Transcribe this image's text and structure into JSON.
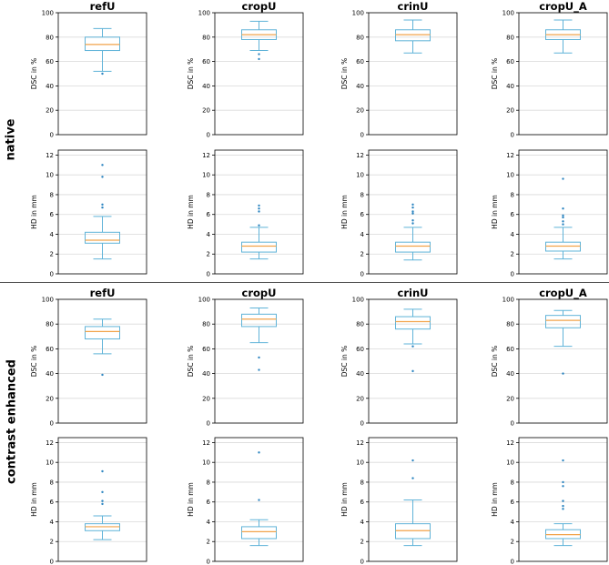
{
  "styles": {
    "box_color": "#5fb3d8",
    "median_color": "#f2a34a",
    "outlier_color": "#2e86c1",
    "grid_color": "#d9d9d9"
  },
  "groups": [
    {
      "label": "native"
    },
    {
      "label": "contrast enhanced"
    }
  ],
  "chart_data": [
    {
      "type": "box",
      "group": "native",
      "title": "refU",
      "ylabel": "DSC in %",
      "ylim": [
        0,
        100
      ],
      "yticks": [
        0,
        20,
        40,
        60,
        80,
        100
      ],
      "grid": true,
      "box": {
        "whisker_low": 52,
        "q1": 69,
        "median": 74,
        "q3": 80,
        "whisker_high": 87,
        "outliers": [
          50
        ]
      }
    },
    {
      "type": "box",
      "group": "native",
      "title": "cropU",
      "ylabel": "DSC in %",
      "ylim": [
        0,
        100
      ],
      "yticks": [
        0,
        20,
        40,
        60,
        80,
        100
      ],
      "grid": true,
      "box": {
        "whisker_low": 69,
        "q1": 78,
        "median": 82,
        "q3": 86,
        "whisker_high": 93,
        "outliers": [
          66,
          62
        ]
      }
    },
    {
      "type": "box",
      "group": "native",
      "title": "crinU",
      "ylabel": "DSC in %",
      "ylim": [
        0,
        100
      ],
      "yticks": [
        0,
        20,
        40,
        60,
        80,
        100
      ],
      "grid": true,
      "box": {
        "whisker_low": 67,
        "q1": 77,
        "median": 82,
        "q3": 86,
        "whisker_high": 94,
        "outliers": []
      }
    },
    {
      "type": "box",
      "group": "native",
      "title": "cropU_A",
      "ylabel": "DSC in %",
      "ylim": [
        0,
        100
      ],
      "yticks": [
        0,
        20,
        40,
        60,
        80,
        100
      ],
      "grid": true,
      "box": {
        "whisker_low": 67,
        "q1": 78,
        "median": 82,
        "q3": 86,
        "whisker_high": 94,
        "outliers": []
      }
    },
    {
      "type": "box",
      "group": "native",
      "title": "",
      "ylabel": "HD in mm",
      "ylim": [
        0,
        12.5
      ],
      "yticks": [
        0,
        2,
        4,
        6,
        8,
        10,
        12
      ],
      "grid": true,
      "box": {
        "whisker_low": 1.5,
        "q1": 3.1,
        "median": 3.4,
        "q3": 4.2,
        "whisker_high": 5.8,
        "outliers": [
          6.7,
          7.0,
          9.8,
          11.0
        ]
      }
    },
    {
      "type": "box",
      "group": "native",
      "title": "",
      "ylabel": "HD in mm",
      "ylim": [
        0,
        12.5
      ],
      "yticks": [
        0,
        2,
        4,
        6,
        8,
        10,
        12
      ],
      "grid": true,
      "box": {
        "whisker_low": 1.5,
        "q1": 2.2,
        "median": 2.8,
        "q3": 3.2,
        "whisker_high": 4.7,
        "outliers": [
          4.9,
          6.3,
          6.6,
          6.9
        ]
      }
    },
    {
      "type": "box",
      "group": "native",
      "title": "",
      "ylabel": "HD in mm",
      "ylim": [
        0,
        12.5
      ],
      "yticks": [
        0,
        2,
        4,
        6,
        8,
        10,
        12
      ],
      "grid": true,
      "box": {
        "whisker_low": 1.4,
        "q1": 2.2,
        "median": 2.8,
        "q3": 3.2,
        "whisker_high": 4.7,
        "outliers": [
          5.1,
          5.4,
          6.1,
          6.3,
          6.7,
          7.0
        ]
      }
    },
    {
      "type": "box",
      "group": "native",
      "title": "",
      "ylabel": "HD in mm",
      "ylim": [
        0,
        12.5
      ],
      "yticks": [
        0,
        2,
        4,
        6,
        8,
        10,
        12
      ],
      "grid": true,
      "box": {
        "whisker_low": 1.5,
        "q1": 2.3,
        "median": 2.8,
        "q3": 3.2,
        "whisker_high": 4.7,
        "outliers": [
          5.0,
          5.3,
          5.7,
          5.9,
          6.6,
          9.6
        ]
      }
    },
    {
      "type": "box",
      "group": "contrast enhanced",
      "title": "refU",
      "ylabel": "DSC in %",
      "ylim": [
        0,
        100
      ],
      "yticks": [
        0,
        20,
        40,
        60,
        80,
        100
      ],
      "grid": true,
      "box": {
        "whisker_low": 56,
        "q1": 68,
        "median": 74,
        "q3": 78,
        "whisker_high": 84,
        "outliers": [
          39
        ]
      }
    },
    {
      "type": "box",
      "group": "contrast enhanced",
      "title": "cropU",
      "ylabel": "DSC in %",
      "ylim": [
        0,
        100
      ],
      "yticks": [
        0,
        20,
        40,
        60,
        80,
        100
      ],
      "grid": true,
      "box": {
        "whisker_low": 65,
        "q1": 78,
        "median": 84,
        "q3": 88,
        "whisker_high": 93,
        "outliers": [
          53,
          43
        ]
      }
    },
    {
      "type": "box",
      "group": "contrast enhanced",
      "title": "crinU",
      "ylabel": "DSC in %",
      "ylim": [
        0,
        100
      ],
      "yticks": [
        0,
        20,
        40,
        60,
        80,
        100
      ],
      "grid": true,
      "box": {
        "whisker_low": 64,
        "q1": 76,
        "median": 82,
        "q3": 86,
        "whisker_high": 92,
        "outliers": [
          62,
          42
        ]
      }
    },
    {
      "type": "box",
      "group": "contrast enhanced",
      "title": "cropU_A",
      "ylabel": "DSC in %",
      "ylim": [
        0,
        100
      ],
      "yticks": [
        0,
        20,
        40,
        60,
        80,
        100
      ],
      "grid": true,
      "box": {
        "whisker_low": 62,
        "q1": 77,
        "median": 83,
        "q3": 87,
        "whisker_high": 91,
        "outliers": [
          40
        ]
      }
    },
    {
      "type": "box",
      "group": "contrast enhanced",
      "title": "",
      "ylabel": "HD in mm",
      "ylim": [
        0,
        12.5
      ],
      "yticks": [
        0,
        2,
        4,
        6,
        8,
        10,
        12
      ],
      "grid": true,
      "box": {
        "whisker_low": 2.2,
        "q1": 3.1,
        "median": 3.5,
        "q3": 3.8,
        "whisker_high": 4.6,
        "outliers": [
          5.8,
          6.1,
          7.0,
          9.1
        ]
      }
    },
    {
      "type": "box",
      "group": "contrast enhanced",
      "title": "",
      "ylabel": "HD in mm",
      "ylim": [
        0,
        12.5
      ],
      "yticks": [
        0,
        2,
        4,
        6,
        8,
        10,
        12
      ],
      "grid": true,
      "box": {
        "whisker_low": 1.6,
        "q1": 2.3,
        "median": 3.0,
        "q3": 3.5,
        "whisker_high": 4.2,
        "outliers": [
          6.2,
          11.0
        ]
      }
    },
    {
      "type": "box",
      "group": "contrast enhanced",
      "title": "",
      "ylabel": "HD in mm",
      "ylim": [
        0,
        12.5
      ],
      "yticks": [
        0,
        2,
        4,
        6,
        8,
        10,
        12
      ],
      "grid": true,
      "box": {
        "whisker_low": 1.6,
        "q1": 2.3,
        "median": 3.1,
        "q3": 3.8,
        "whisker_high": 6.2,
        "outliers": [
          8.4,
          10.2
        ]
      }
    },
    {
      "type": "box",
      "group": "contrast enhanced",
      "title": "",
      "ylabel": "HD in mm",
      "ylim": [
        0,
        12.5
      ],
      "yticks": [
        0,
        2,
        4,
        6,
        8,
        10,
        12
      ],
      "grid": true,
      "box": {
        "whisker_low": 1.6,
        "q1": 2.3,
        "median": 2.7,
        "q3": 3.2,
        "whisker_high": 3.8,
        "outliers": [
          5.3,
          5.6,
          6.1,
          7.6,
          8.0,
          10.2
        ]
      }
    }
  ]
}
